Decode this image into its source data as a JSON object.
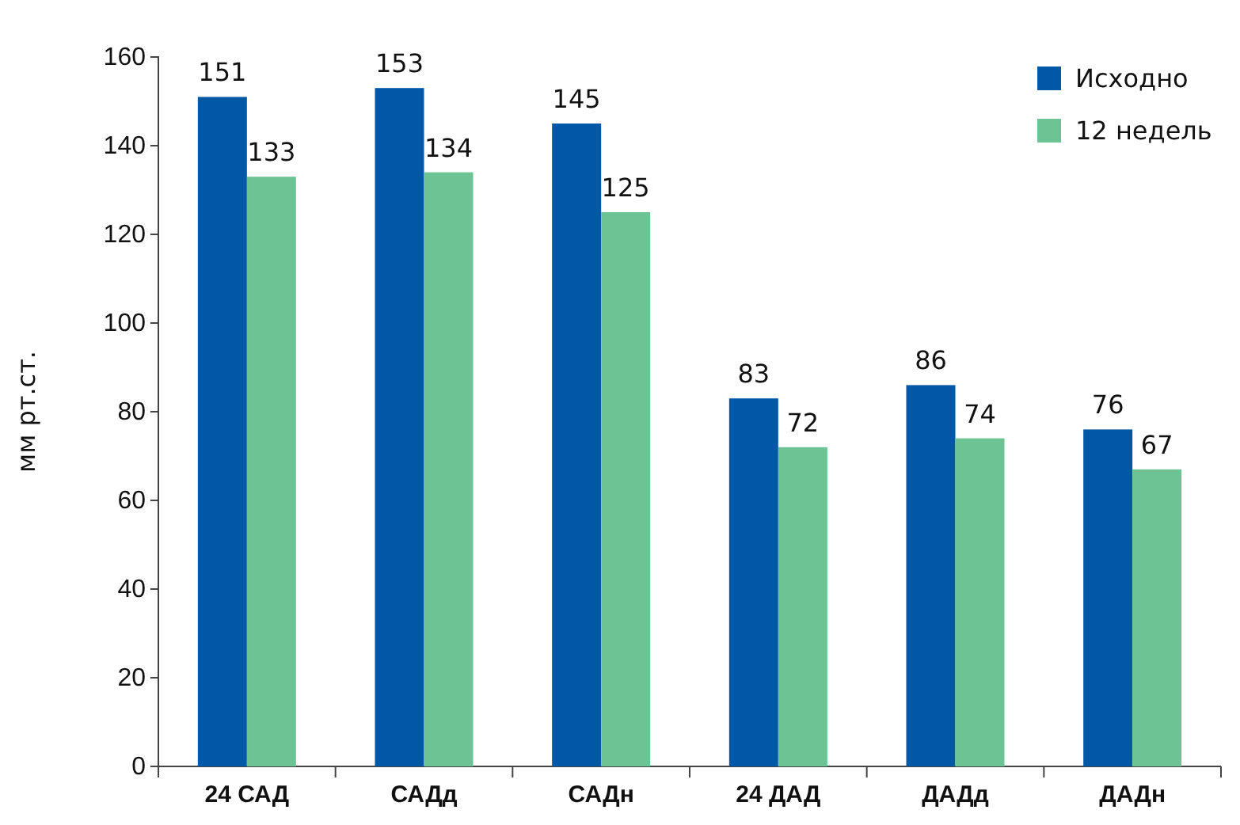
{
  "chart_data": {
    "type": "bar",
    "ylabel": "мм рт.ст.",
    "categories": [
      "24 САД",
      "САДд",
      "САДн",
      "24 ДАД",
      "ДАДд",
      "ДАДн"
    ],
    "series": [
      {
        "name": "Исходно",
        "color": "#0058a6",
        "values": [
          151,
          153,
          145,
          83,
          86,
          76
        ]
      },
      {
        "name": "12 недель",
        "color": "#6dc393",
        "values": [
          133,
          134,
          125,
          72,
          74,
          67
        ]
      }
    ],
    "ylim": [
      0,
      160
    ],
    "yticks": [
      0,
      20,
      40,
      60,
      80,
      100,
      120,
      140,
      160
    ],
    "data_labels": true,
    "legend": "top right",
    "grid": false
  }
}
